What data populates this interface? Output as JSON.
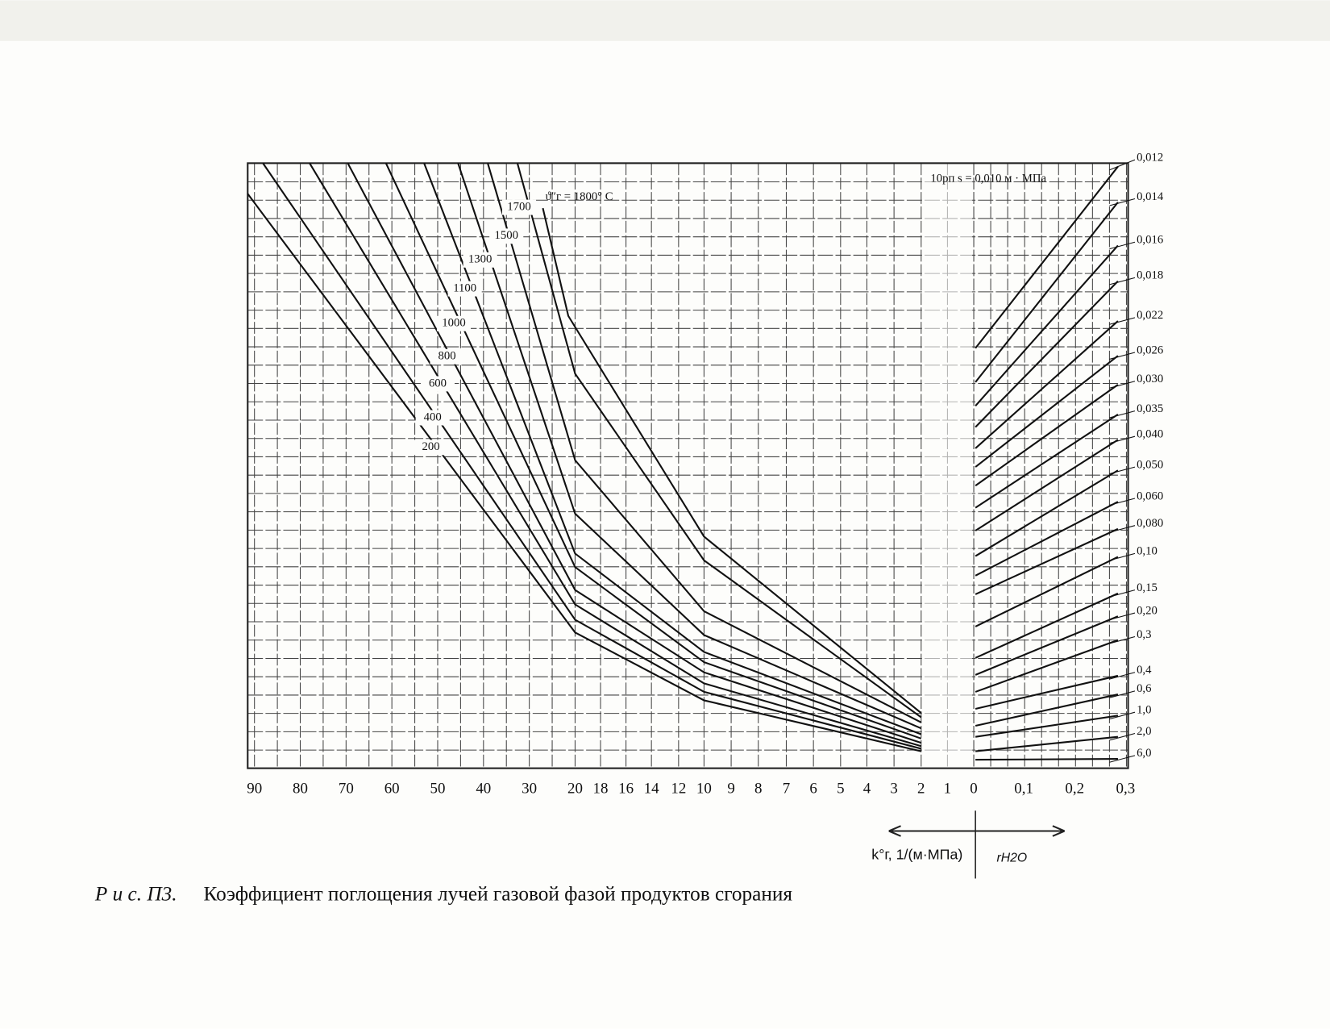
{
  "header_note": "10pп s = 0,010 м · МПа",
  "temperature_label": "ϑ″г = 1800° С",
  "temperature_curves": [
    "200",
    "400",
    "600",
    "800",
    "1000",
    "1100",
    "1300",
    "1500",
    "1700"
  ],
  "pressure_curves": [
    "0,012",
    "0,014",
    "0,016",
    "0,018",
    "0,022",
    "0,026",
    "0,030",
    "0,035",
    "0,040",
    "0,050",
    "0,060",
    "0,080",
    "0,10",
    "0,15",
    "0,20",
    "0,3",
    "0,4",
    "0,6",
    "1,0",
    "2,0",
    "6,0"
  ],
  "x_axis": {
    "left_ticks": [
      "90",
      "80",
      "70",
      "60",
      "50",
      "40",
      "30",
      "20",
      "18",
      "16",
      "14",
      "12",
      "10",
      "9",
      "8",
      "7",
      "6",
      "5",
      "4",
      "3",
      "2",
      "1",
      "0"
    ],
    "right_ticks": [
      "0,1",
      "0,2",
      "0,3"
    ],
    "left_label": "k°г, 1/(м·МПа)",
    "right_label": "rH2O"
  },
  "caption": {
    "prefix": "Р и с. П3.",
    "text": "Коэффициент поглощения лучей газовой фазой продуктов сгорания"
  }
}
